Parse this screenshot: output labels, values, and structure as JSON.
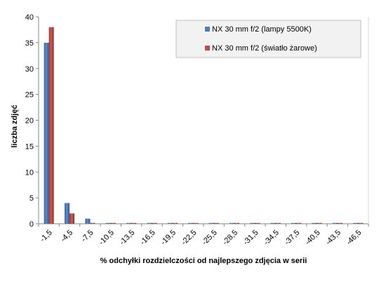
{
  "chart_data": {
    "type": "bar",
    "title": "",
    "xlabel": "% odchyłki  rozdzielczości  od najlepszego  zdjęcia  w serii",
    "ylabel": "liczba zdjęć",
    "categories": [
      "-1,5",
      "-4,5",
      "-7,5",
      "-10,5",
      "-13,5",
      "-16,5",
      "-19,5",
      "-22,5",
      "-25,5",
      "-28,5",
      "-31,5",
      "-34,5",
      "-37,5",
      "-40,5",
      "-43,5",
      "-46,5"
    ],
    "series": [
      {
        "name": "NX 30 mm f/2 (lampy  5500K)",
        "color": "#4a7ebb",
        "values": [
          35,
          4,
          1,
          0,
          0,
          0,
          0,
          0,
          0,
          0,
          0,
          0,
          0,
          0,
          0,
          0
        ]
      },
      {
        "name": "NX 30 mm f/2 (światło  żarowe)",
        "color": "#be4b48",
        "values": [
          38,
          2,
          0,
          0,
          0,
          0,
          0,
          0,
          0,
          0,
          0,
          0,
          0,
          0,
          0,
          0
        ]
      }
    ],
    "ylim": [
      0,
      40
    ],
    "yticks": [
      0,
      5,
      10,
      15,
      20,
      25,
      30,
      35,
      40
    ],
    "grid": false,
    "legend_position": "top-right"
  }
}
